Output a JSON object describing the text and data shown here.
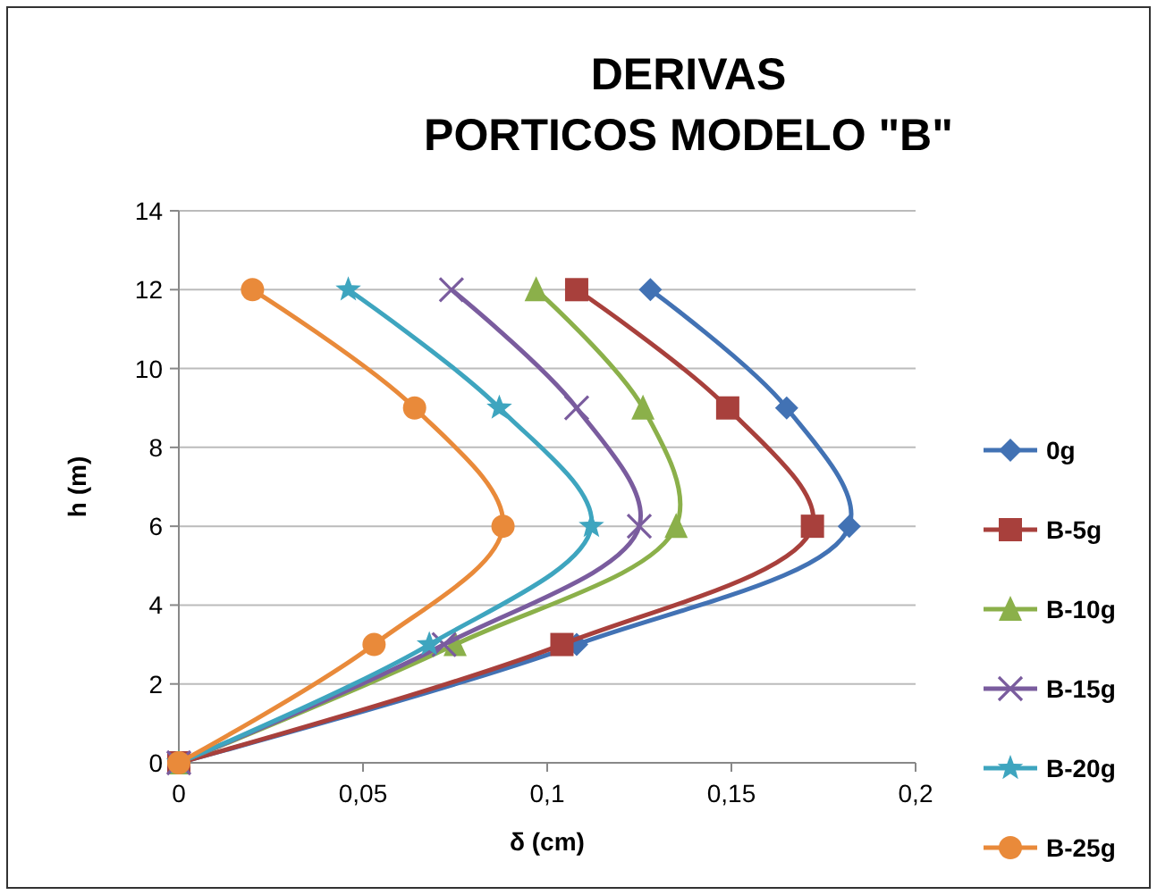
{
  "chart_data": {
    "type": "line",
    "title": "DERIVAS\nPORTICOS MODELO \"B\"",
    "xlabel": "δ (cm)",
    "ylabel": "h (m)",
    "xlim": [
      0,
      0.2
    ],
    "xticks": [
      0,
      {
        "value": 0.05,
        "label": "0,05"
      },
      {
        "value": 0.1,
        "label": "0,1"
      },
      {
        "value": 0.15,
        "label": "0,15"
      },
      {
        "value": 0.2,
        "label": "0,2"
      }
    ],
    "ylim": [
      0,
      14
    ],
    "yticks": [
      0,
      2,
      4,
      6,
      8,
      10,
      12,
      14
    ],
    "grid": "y",
    "legend": "right",
    "series": [
      {
        "name": "0g",
        "color": "#4272b4",
        "marker": "diamond",
        "x": [
          0,
          0.108,
          0.182,
          0.165,
          0.128
        ],
        "values": [
          0,
          3,
          6,
          9,
          12
        ]
      },
      {
        "name": "B-5g",
        "color": "#a8403c",
        "marker": "square",
        "x": [
          0,
          0.104,
          0.172,
          0.149,
          0.108
        ],
        "values": [
          0,
          3,
          6,
          9,
          12
        ]
      },
      {
        "name": "B-10g",
        "color": "#8bb04a",
        "marker": "triangle",
        "x": [
          0,
          0.075,
          0.135,
          0.126,
          0.097
        ],
        "values": [
          0,
          3,
          6,
          9,
          12
        ]
      },
      {
        "name": "B-15g",
        "color": "#7a5c9e",
        "marker": "cross",
        "x": [
          0,
          0.072,
          0.125,
          0.108,
          0.074
        ],
        "values": [
          0,
          3,
          6,
          9,
          12
        ]
      },
      {
        "name": "B-20g",
        "color": "#3ea5bf",
        "marker": "star",
        "x": [
          0,
          0.068,
          0.112,
          0.087,
          0.046
        ],
        "values": [
          0,
          3,
          6,
          9,
          12
        ]
      },
      {
        "name": "B-25g",
        "color": "#e98a3a",
        "marker": "circle",
        "x": [
          0,
          0.053,
          0.088,
          0.064,
          0.02
        ],
        "values": [
          0,
          3,
          6,
          9,
          12
        ]
      }
    ]
  }
}
